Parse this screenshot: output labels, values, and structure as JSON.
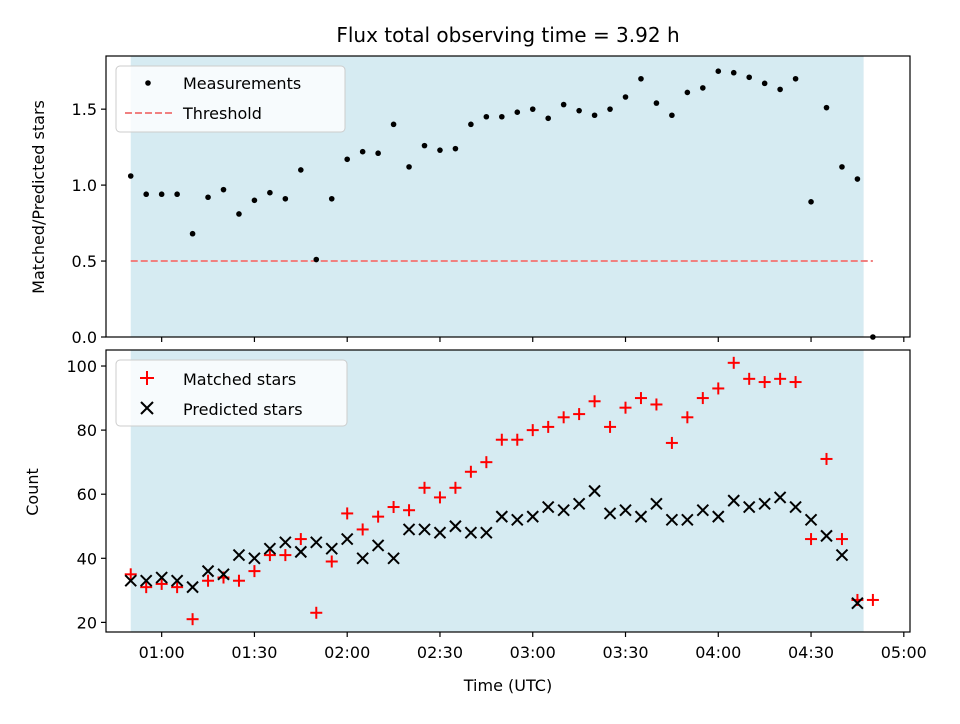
{
  "chart_data": {
    "title": "Flux total observing time = 3.92 h",
    "xlabel": "Time (UTC)",
    "xlim": [
      "00:42",
      "05:02"
    ],
    "xticks": [
      "01:00",
      "01:30",
      "02:00",
      "02:30",
      "03:00",
      "03:30",
      "04:00",
      "04:30",
      "05:00"
    ],
    "shaded_span": {
      "start": "00:50",
      "end": "04:47",
      "color": "#add8e6"
    },
    "top": {
      "type": "scatter",
      "ylabel": "Matched/Predicted stars",
      "ylim": [
        0,
        1.85
      ],
      "yticks": [
        0.0,
        0.5,
        1.0,
        1.5
      ],
      "yticklabels": [
        "0.0",
        "0.5",
        "1.0",
        "1.5"
      ],
      "legend_position": "upper-left",
      "series": [
        {
          "name": "Measurements",
          "marker": "dot",
          "color": "#000000",
          "points": [
            [
              "00:50",
              1.06
            ],
            [
              "00:55",
              0.94
            ],
            [
              "01:00",
              0.94
            ],
            [
              "01:05",
              0.94
            ],
            [
              "01:10",
              0.68
            ],
            [
              "01:15",
              0.92
            ],
            [
              "01:20",
              0.97
            ],
            [
              "01:25",
              0.81
            ],
            [
              "01:30",
              0.9
            ],
            [
              "01:35",
              0.95
            ],
            [
              "01:40",
              0.91
            ],
            [
              "01:45",
              1.1
            ],
            [
              "01:50",
              0.51
            ],
            [
              "01:55",
              0.91
            ],
            [
              "02:00",
              1.17
            ],
            [
              "02:05",
              1.22
            ],
            [
              "02:10",
              1.21
            ],
            [
              "02:15",
              1.4
            ],
            [
              "02:20",
              1.12
            ],
            [
              "02:25",
              1.26
            ],
            [
              "02:30",
              1.23
            ],
            [
              "02:35",
              1.24
            ],
            [
              "02:40",
              1.4
            ],
            [
              "02:45",
              1.45
            ],
            [
              "02:50",
              1.45
            ],
            [
              "02:55",
              1.48
            ],
            [
              "03:00",
              1.5
            ],
            [
              "03:05",
              1.44
            ],
            [
              "03:10",
              1.53
            ],
            [
              "03:15",
              1.49
            ],
            [
              "03:20",
              1.46
            ],
            [
              "03:25",
              1.5
            ],
            [
              "03:30",
              1.58
            ],
            [
              "03:35",
              1.7
            ],
            [
              "03:40",
              1.54
            ],
            [
              "03:45",
              1.46
            ],
            [
              "03:50",
              1.61
            ],
            [
              "03:55",
              1.64
            ],
            [
              "04:00",
              1.75
            ],
            [
              "04:05",
              1.74
            ],
            [
              "04:10",
              1.71
            ],
            [
              "04:15",
              1.67
            ],
            [
              "04:20",
              1.63
            ],
            [
              "04:25",
              1.7
            ],
            [
              "04:30",
              0.89
            ],
            [
              "04:35",
              1.51
            ],
            [
              "04:40",
              1.12
            ],
            [
              "04:45",
              1.04
            ],
            [
              "04:50",
              0.0
            ]
          ]
        },
        {
          "name": "Threshold",
          "type": "line",
          "style": "dashed",
          "color": "#f08080",
          "points": [
            [
              "00:50",
              0.5
            ],
            [
              "04:50",
              0.5
            ]
          ]
        }
      ]
    },
    "bottom": {
      "type": "scatter",
      "ylabel": "Count",
      "ylim": [
        17,
        105
      ],
      "yticks": [
        20,
        40,
        60,
        80,
        100
      ],
      "yticklabels": [
        "20",
        "40",
        "60",
        "80",
        "100"
      ],
      "legend_position": "upper-left",
      "series": [
        {
          "name": "Matched stars",
          "marker": "plus",
          "color": "#ff0000",
          "points": [
            [
              "00:50",
              35
            ],
            [
              "00:55",
              31
            ],
            [
              "01:00",
              32
            ],
            [
              "01:05",
              31
            ],
            [
              "01:10",
              21
            ],
            [
              "01:15",
              33
            ],
            [
              "01:20",
              34
            ],
            [
              "01:25",
              33
            ],
            [
              "01:30",
              36
            ],
            [
              "01:35",
              41
            ],
            [
              "01:40",
              41
            ],
            [
              "01:45",
              46
            ],
            [
              "01:50",
              23
            ],
            [
              "01:55",
              39
            ],
            [
              "02:00",
              54
            ],
            [
              "02:05",
              49
            ],
            [
              "02:10",
              53
            ],
            [
              "02:15",
              56
            ],
            [
              "02:20",
              55
            ],
            [
              "02:25",
              62
            ],
            [
              "02:30",
              59
            ],
            [
              "02:35",
              62
            ],
            [
              "02:40",
              67
            ],
            [
              "02:45",
              70
            ],
            [
              "02:50",
              77
            ],
            [
              "02:55",
              77
            ],
            [
              "03:00",
              80
            ],
            [
              "03:05",
              81
            ],
            [
              "03:10",
              84
            ],
            [
              "03:15",
              85
            ],
            [
              "03:20",
              89
            ],
            [
              "03:25",
              81
            ],
            [
              "03:30",
              87
            ],
            [
              "03:35",
              90
            ],
            [
              "03:40",
              88
            ],
            [
              "03:45",
              76
            ],
            [
              "03:50",
              84
            ],
            [
              "03:55",
              90
            ],
            [
              "04:00",
              93
            ],
            [
              "04:05",
              101
            ],
            [
              "04:10",
              96
            ],
            [
              "04:15",
              95
            ],
            [
              "04:20",
              96
            ],
            [
              "04:25",
              95
            ],
            [
              "04:30",
              46
            ],
            [
              "04:35",
              71
            ],
            [
              "04:40",
              46
            ],
            [
              "04:45",
              27
            ],
            [
              "04:50",
              27
            ]
          ]
        },
        {
          "name": "Predicted stars",
          "marker": "x",
          "color": "#000000",
          "points": [
            [
              "00:50",
              33
            ],
            [
              "00:55",
              33
            ],
            [
              "01:00",
              34
            ],
            [
              "01:05",
              33
            ],
            [
              "01:10",
              31
            ],
            [
              "01:15",
              36
            ],
            [
              "01:20",
              35
            ],
            [
              "01:25",
              41
            ],
            [
              "01:30",
              40
            ],
            [
              "01:35",
              43
            ],
            [
              "01:40",
              45
            ],
            [
              "01:45",
              42
            ],
            [
              "01:50",
              45
            ],
            [
              "01:55",
              43
            ],
            [
              "02:00",
              46
            ],
            [
              "02:05",
              40
            ],
            [
              "02:10",
              44
            ],
            [
              "02:15",
              40
            ],
            [
              "02:20",
              49
            ],
            [
              "02:25",
              49
            ],
            [
              "02:30",
              48
            ],
            [
              "02:35",
              50
            ],
            [
              "02:40",
              48
            ],
            [
              "02:45",
              48
            ],
            [
              "02:50",
              53
            ],
            [
              "02:55",
              52
            ],
            [
              "03:00",
              53
            ],
            [
              "03:05",
              56
            ],
            [
              "03:10",
              55
            ],
            [
              "03:15",
              57
            ],
            [
              "03:20",
              61
            ],
            [
              "03:25",
              54
            ],
            [
              "03:30",
              55
            ],
            [
              "03:35",
              53
            ],
            [
              "03:40",
              57
            ],
            [
              "03:45",
              52
            ],
            [
              "03:50",
              52
            ],
            [
              "03:55",
              55
            ],
            [
              "04:00",
              53
            ],
            [
              "04:05",
              58
            ],
            [
              "04:10",
              56
            ],
            [
              "04:15",
              57
            ],
            [
              "04:20",
              59
            ],
            [
              "04:25",
              56
            ],
            [
              "04:30",
              52
            ],
            [
              "04:35",
              47
            ],
            [
              "04:40",
              41
            ],
            [
              "04:45",
              26
            ]
          ]
        }
      ]
    }
  }
}
